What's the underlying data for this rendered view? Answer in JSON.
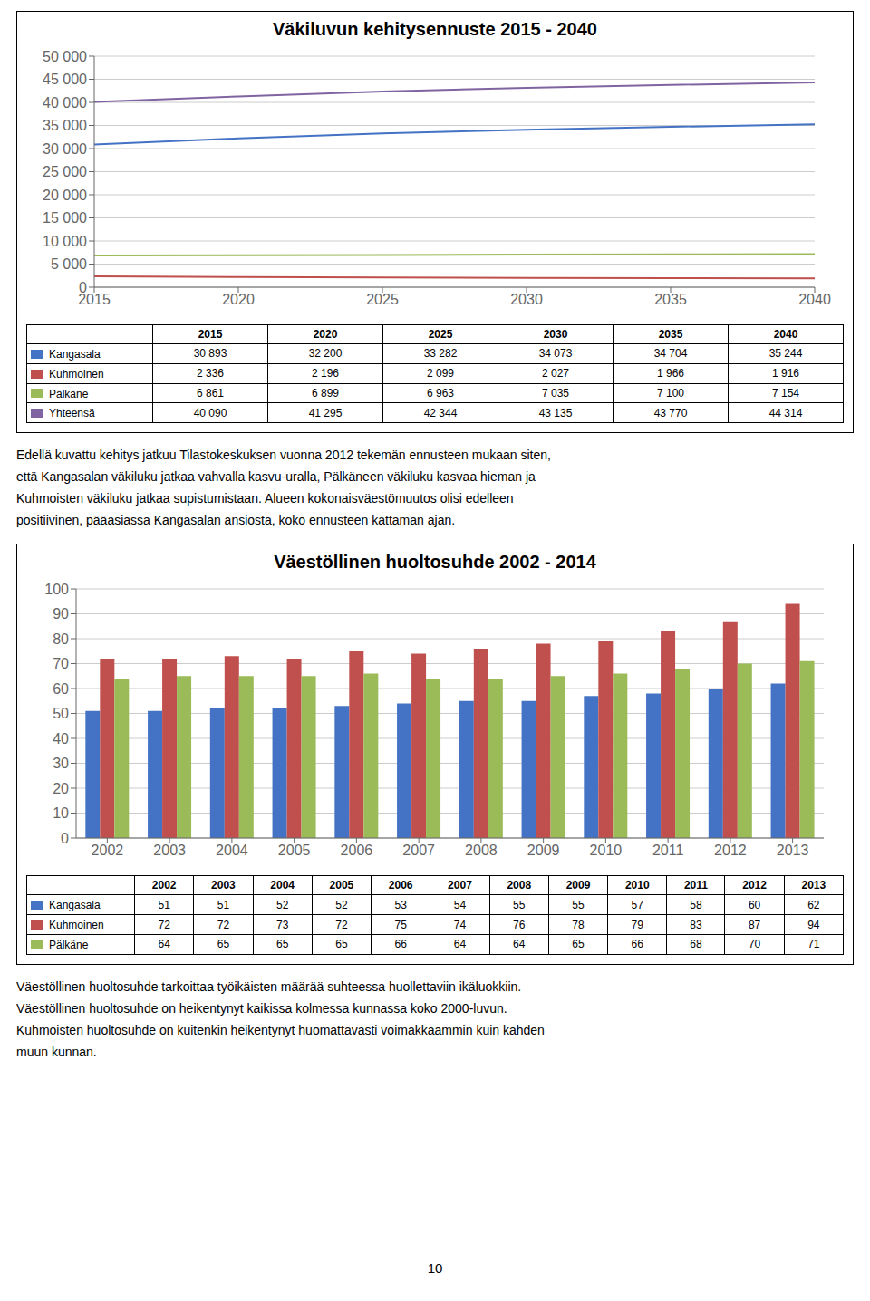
{
  "chart_data": [
    {
      "type": "line",
      "title": "Väkiluvun kehitysennuste 2015 - 2040",
      "x": [
        2015,
        2020,
        2025,
        2030,
        2035,
        2040
      ],
      "xlim": [
        2015,
        2040
      ],
      "xticks": [
        2015,
        2020,
        2025,
        2030,
        2035,
        2040
      ],
      "ylim": [
        0,
        50000
      ],
      "yticks": [
        0,
        {
          "value": 5000,
          "label": "5 000"
        },
        {
          "value": 10000,
          "label": "10 000"
        },
        {
          "value": 15000,
          "label": "15 000"
        },
        {
          "value": 20000,
          "label": "20 000"
        },
        {
          "value": 25000,
          "label": "25 000"
        },
        {
          "value": 30000,
          "label": "30 000"
        },
        {
          "value": 35000,
          "label": "35 000"
        },
        {
          "value": 40000,
          "label": "40 000"
        },
        {
          "value": 45000,
          "label": "45 000"
        },
        {
          "value": 50000,
          "label": "50 000"
        }
      ],
      "grid": true,
      "series": [
        {
          "name": "Kangasala",
          "color": "#4472c4",
          "values": [
            30893,
            32200,
            33282,
            34073,
            34704,
            35244
          ],
          "value_labels": [
            "30 893",
            "32 200",
            "33 282",
            "34 073",
            "34 704",
            "35 244"
          ]
        },
        {
          "name": "Kuhmoinen",
          "color": "#c0504d",
          "values": [
            2336,
            2196,
            2099,
            2027,
            1966,
            1916
          ],
          "value_labels": [
            "2 336",
            "2 196",
            "2 099",
            "2 027",
            "1 966",
            "1 916"
          ]
        },
        {
          "name": "Pälkäne",
          "color": "#9bbb59",
          "values": [
            6861,
            6899,
            6963,
            7035,
            7100,
            7154
          ],
          "value_labels": [
            "6 861",
            "6 899",
            "6 963",
            "7 035",
            "7 100",
            "7 154"
          ]
        },
        {
          "name": "Yhteensä",
          "color": "#8064a2",
          "values": [
            40090,
            41295,
            42344,
            43135,
            43770,
            44314
          ],
          "value_labels": [
            "40 090",
            "41 295",
            "42 344",
            "43 135",
            "43 770",
            "44 314"
          ]
        }
      ],
      "annotations": [
        "Edellä kuvattu kehitys jatkuu Tilastokeskuksen vuonna 2012 tekemän ennusteen mukaan siten,",
        "että Kangasalan väkiluku jatkaa vahvalla kasvu-uralla, Pälkäneen väkiluku kasvaa hieman ja",
        "Kuhmoisten väkiluku jatkaa supistumistaan. Alueen kokonaisväestömuutos olisi edelleen",
        "positiivinen, pääasiassa Kangasalan ansiosta, koko ennusteen kattaman ajan."
      ]
    },
    {
      "type": "bar",
      "title": "Väestöllinen huoltosuhde 2002 - 2014",
      "categories": [
        "2002",
        "2003",
        "2004",
        "2005",
        "2006",
        "2007",
        "2008",
        "2009",
        "2010",
        "2011",
        "2012",
        "2013"
      ],
      "ylim": [
        0,
        100
      ],
      "yticks": [
        0,
        10,
        20,
        30,
        40,
        50,
        60,
        70,
        80,
        90,
        100
      ],
      "grid": true,
      "series": [
        {
          "name": "Kangasala",
          "color": "#4472c4",
          "values": [
            51,
            51,
            52,
            52,
            53,
            54,
            55,
            55,
            57,
            58,
            60,
            62
          ]
        },
        {
          "name": "Kuhmoinen",
          "color": "#c0504d",
          "values": [
            72,
            72,
            73,
            72,
            75,
            74,
            76,
            78,
            79,
            83,
            87,
            94
          ]
        },
        {
          "name": "Pälkäne",
          "color": "#9bbb59",
          "values": [
            64,
            65,
            65,
            65,
            66,
            64,
            64,
            65,
            66,
            68,
            70,
            71
          ]
        }
      ],
      "annotations": [
        "Väestöllinen huoltosuhde tarkoittaa työikäisten määrää suhteessa huollettaviin ikäluokkiin.",
        "Väestöllinen huoltosuhde on heikentynyt kaikissa kolmessa kunnassa koko 2000-luvun.",
        "Kuhmoisten huoltosuhde on kuitenkin heikentynyt huomattavasti voimakkaammin kuin kahden",
        "muun kunnan."
      ]
    }
  ],
  "page_number": "10"
}
